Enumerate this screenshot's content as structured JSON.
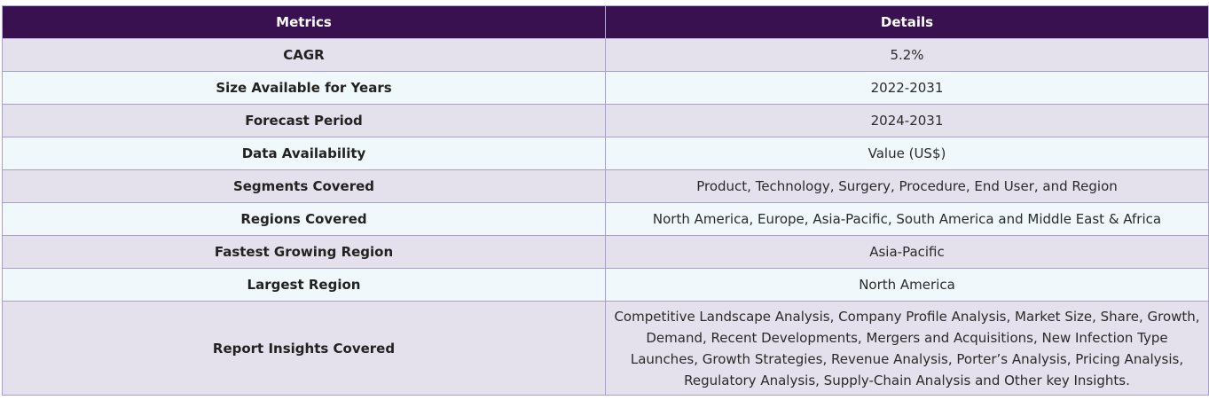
{
  "table": {
    "headers": {
      "metrics": "Metrics",
      "details": "Details"
    },
    "rows": [
      {
        "metric": "CAGR",
        "detail": "5.2%"
      },
      {
        "metric": "Size Available for Years",
        "detail": "2022-2031"
      },
      {
        "metric": "Forecast Period",
        "detail": "2024-2031"
      },
      {
        "metric": "Data Availability",
        "detail": "Value (US$)"
      },
      {
        "metric": "Segments Covered",
        "detail": "Product, Technology, Surgery, Procedure, End User, and Region"
      },
      {
        "metric": "Regions Covered",
        "detail": "North America, Europe, Asia-Pacific, South America and Middle East & Africa"
      },
      {
        "metric": "Fastest Growing Region",
        "detail": "Asia-Pacific"
      },
      {
        "metric": "Largest Region",
        "detail": "North America"
      },
      {
        "metric": "Report Insights Covered",
        "detail": "Competitive Landscape Analysis, Company Profile Analysis, Market Size, Share, Growth, Demand, Recent Developments, Mergers and Acquisitions, New Infection Type Launches, Growth Strategies, Revenue Analysis, Porter’s Analysis, Pricing Analysis, Regulatory Analysis, Supply-Chain Analysis and Other key Insights."
      }
    ]
  },
  "colors": {
    "header_bg": "#3a1150",
    "row_odd_bg": "#e4e1ec",
    "row_even_bg": "#f1f8fc",
    "border": "#a99fcf"
  }
}
